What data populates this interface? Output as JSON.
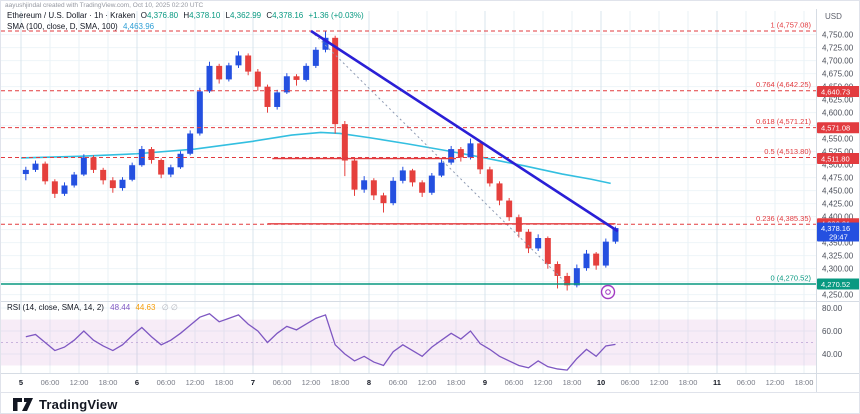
{
  "attribution": "aayushjindal created with TradingView.com, Oct 10, 2025 02:20 UTC",
  "legend": {
    "symbol": "Ethereum / U.S. Dollar · 1h · Kraken",
    "ohlc": {
      "o_label": "O",
      "o": "4,376.80",
      "h_label": "H",
      "h": "4,378.10",
      "l_label": "L",
      "l": "4,362.99",
      "c_label": "C",
      "c": "4,378.16",
      "change": "+1.36 (+0.03%)"
    },
    "sma": {
      "label": "SMA (100, close, D, SMA, 100)",
      "value": "4,463.96"
    },
    "rsi": {
      "label": "RSI (14, close, SMA, 14, 2)",
      "value": "48.44",
      "ma_value": "44.63",
      "extra": "∅ ∅"
    }
  },
  "price_axis": {
    "currency": "USD",
    "ticks": [
      "4,750.00",
      "4,725.00",
      "4,700.00",
      "4,675.00",
      "4,650.00",
      "4,625.00",
      "4,600.00",
      "4,575.00",
      "4,550.00",
      "4,525.00",
      "4,500.00",
      "4,475.00",
      "4,450.00",
      "4,425.00",
      "4,400.00",
      "4,375.00",
      "4,350.00",
      "4,325.00",
      "4,300.00",
      "4,275.00",
      "4,250.00"
    ],
    "labels": [
      {
        "text": "4,640.73",
        "price": 4640.73,
        "type": "red"
      },
      {
        "text": "4,571.08",
        "price": 4571.08,
        "type": "red"
      },
      {
        "text": "4,511.80",
        "price": 4511.8,
        "type": "red"
      },
      {
        "text": "4,386.31",
        "price": 4386.31,
        "type": "red"
      },
      {
        "text": "4,378.16",
        "price": 4378.16,
        "type": "current",
        "countdown": "29:47"
      },
      {
        "text": "4,270.52",
        "price": 4270.52,
        "type": "green"
      }
    ]
  },
  "time_axis": [
    {
      "label": "5",
      "major": true
    },
    {
      "label": "06:00"
    },
    {
      "label": "12:00"
    },
    {
      "label": "18:00"
    },
    {
      "label": "6",
      "major": true
    },
    {
      "label": "06:00"
    },
    {
      "label": "12:00"
    },
    {
      "label": "18:00"
    },
    {
      "label": "7",
      "major": true
    },
    {
      "label": "06:00"
    },
    {
      "label": "12:00"
    },
    {
      "label": "18:00"
    },
    {
      "label": "8",
      "major": true
    },
    {
      "label": "06:00"
    },
    {
      "label": "12:00"
    },
    {
      "label": "18:00"
    },
    {
      "label": "9",
      "major": true
    },
    {
      "label": "06:00"
    },
    {
      "label": "12:00"
    },
    {
      "label": "18:00"
    },
    {
      "label": "10",
      "major": true
    },
    {
      "label": "06:00"
    },
    {
      "label": "12:00"
    },
    {
      "label": "18:00"
    },
    {
      "label": "11",
      "major": true
    },
    {
      "label": "06:00"
    },
    {
      "label": "12:00"
    },
    {
      "label": "18:00"
    }
  ],
  "rsi_axis": [
    "80.00",
    "60.00",
    "40.00"
  ],
  "logo": {
    "text": "TradingView"
  },
  "colors": {
    "up": "#2450e0",
    "down": "#e5403d",
    "trend": "#2a1fd6",
    "sma": "#33bfe0",
    "fib_red": "#e23b3f",
    "teal": "#089981",
    "current_bg": "#2450e0",
    "rsi_line": "#7e57c2",
    "rsi_band": "rgba(178,72,180,0.10)"
  },
  "chart_data": {
    "type": "candlestick",
    "title": "Ethereum / U.S. Dollar",
    "interval": "1h",
    "exchange": "Kraken",
    "ylabel": "USD",
    "ylim": [
      4250,
      4772
    ],
    "x_range": "Oct 5 00:00 – Oct 11 18:00 (plotted bars end Oct 10 ~02:00)",
    "bar_hours": 2,
    "candles": [
      [
        4482,
        4496,
        4470,
        4490
      ],
      [
        4490,
        4508,
        4486,
        4502
      ],
      [
        4502,
        4506,
        4462,
        4468
      ],
      [
        4468,
        4472,
        4436,
        4444
      ],
      [
        4444,
        4466,
        4440,
        4460
      ],
      [
        4460,
        4486,
        4456,
        4481
      ],
      [
        4481,
        4520,
        4478,
        4514
      ],
      [
        4514,
        4518,
        4484,
        4490
      ],
      [
        4490,
        4494,
        4462,
        4470
      ],
      [
        4470,
        4476,
        4446,
        4455
      ],
      [
        4455,
        4476,
        4450,
        4471
      ],
      [
        4471,
        4504,
        4468,
        4499
      ],
      [
        4499,
        4536,
        4496,
        4530
      ],
      [
        4530,
        4534,
        4502,
        4509
      ],
      [
        4509,
        4512,
        4474,
        4481
      ],
      [
        4481,
        4500,
        4476,
        4495
      ],
      [
        4495,
        4526,
        4492,
        4521
      ],
      [
        4521,
        4566,
        4518,
        4560
      ],
      [
        4560,
        4648,
        4556,
        4641
      ],
      [
        4641,
        4698,
        4638,
        4690
      ],
      [
        4690,
        4694,
        4656,
        4664
      ],
      [
        4664,
        4696,
        4660,
        4691
      ],
      [
        4691,
        4718,
        4686,
        4710
      ],
      [
        4710,
        4714,
        4672,
        4679
      ],
      [
        4679,
        4684,
        4642,
        4650
      ],
      [
        4650,
        4654,
        4600,
        4611
      ],
      [
        4611,
        4644,
        4606,
        4639
      ],
      [
        4639,
        4676,
        4636,
        4670
      ],
      [
        4670,
        4674,
        4652,
        4663
      ],
      [
        4663,
        4695,
        4660,
        4690
      ],
      [
        4690,
        4726,
        4686,
        4721
      ],
      [
        4721,
        4757,
        4716,
        4744
      ],
      [
        4744,
        4748,
        4560,
        4578
      ],
      [
        4578,
        4584,
        4478,
        4508
      ],
      [
        4508,
        4514,
        4440,
        4452
      ],
      [
        4452,
        4478,
        4446,
        4470
      ],
      [
        4470,
        4474,
        4432,
        4441
      ],
      [
        4441,
        4446,
        4408,
        4426
      ],
      [
        4426,
        4476,
        4422,
        4469
      ],
      [
        4469,
        4496,
        4464,
        4489
      ],
      [
        4489,
        4492,
        4458,
        4466
      ],
      [
        4466,
        4470,
        4438,
        4446
      ],
      [
        4446,
        4484,
        4442,
        4479
      ],
      [
        4479,
        4510,
        4476,
        4504
      ],
      [
        4504,
        4536,
        4500,
        4530
      ],
      [
        4530,
        4534,
        4506,
        4514
      ],
      [
        4514,
        4550,
        4510,
        4541
      ],
      [
        4541,
        4544,
        4482,
        4491
      ],
      [
        4491,
        4496,
        4458,
        4464
      ],
      [
        4464,
        4468,
        4422,
        4431
      ],
      [
        4431,
        4436,
        4392,
        4399
      ],
      [
        4399,
        4404,
        4360,
        4371
      ],
      [
        4371,
        4376,
        4330,
        4339
      ],
      [
        4339,
        4366,
        4334,
        4359
      ],
      [
        4359,
        4362,
        4300,
        4309
      ],
      [
        4309,
        4314,
        4262,
        4286
      ],
      [
        4286,
        4292,
        4258,
        4268
      ],
      [
        4268,
        4308,
        4264,
        4301
      ],
      [
        4301,
        4336,
        4296,
        4329
      ],
      [
        4329,
        4332,
        4298,
        4306
      ],
      [
        4306,
        4358,
        4302,
        4352
      ],
      [
        4352,
        4381,
        4348,
        4378.16
      ]
    ],
    "sma100": {
      "label": "SMA (100, close, D, SMA, 100)",
      "last_value": 4463.96,
      "points_hour_price": [
        [
          0,
          4513
        ],
        [
          12,
          4516
        ],
        [
          24,
          4521
        ],
        [
          36,
          4530
        ],
        [
          48,
          4545
        ],
        [
          56,
          4557
        ],
        [
          62,
          4562
        ],
        [
          66,
          4560
        ],
        [
          72,
          4552
        ],
        [
          80,
          4540
        ],
        [
          88,
          4527
        ],
        [
          96,
          4513
        ],
        [
          104,
          4498
        ],
        [
          112,
          4482
        ],
        [
          118,
          4472
        ],
        [
          122,
          4464
        ]
      ]
    },
    "trendline": {
      "from": {
        "hour": 60,
        "price": 4757.08
      },
      "to": {
        "hour": 123.5,
        "price": 4372
      }
    },
    "fib_retracement": {
      "anchor_high": {
        "hour": 60,
        "price": 4757.08
      },
      "anchor_low": {
        "hour": 113,
        "price": 4270.52
      },
      "levels": [
        {
          "level": "1",
          "price": 4757.08,
          "label": "1 (4,757.08)"
        },
        {
          "level": "0.764",
          "price": 4642.25,
          "label": "0.764 (4,642.25)"
        },
        {
          "level": "0.618",
          "price": 4571.21,
          "label": "0.618 (4,571.21)"
        },
        {
          "level": "0.5",
          "price": 4513.8,
          "label": "0.5 (4,513.80)"
        },
        {
          "level": "0.236",
          "price": 4385.35,
          "label": "0.236 (4,385.35)"
        },
        {
          "level": "0",
          "price": 4270.52,
          "label": "0 (4,270.52)"
        }
      ]
    },
    "horizontal_lines": [
      {
        "price": 4511.8,
        "from_hour": 52,
        "to_hour": 90,
        "style": "solid",
        "color": "red"
      },
      {
        "price": 4386.31,
        "from_hour": 51,
        "to_hour": 123,
        "style": "solid",
        "color": "red"
      },
      {
        "price": 4270.52,
        "from_hour": 0,
        "to_hour": 164,
        "style": "solid",
        "color": "teal"
      }
    ],
    "rsi": {
      "band": [
        30,
        70
      ],
      "last_value": 48.44,
      "ma_last_value": 44.63,
      "values": [
        55,
        57,
        50,
        43,
        46,
        52,
        60,
        52,
        47,
        43,
        48,
        56,
        63,
        55,
        48,
        52,
        58,
        65,
        72,
        75,
        68,
        71,
        74,
        66,
        60,
        50,
        58,
        64,
        61,
        66,
        71,
        74,
        48,
        40,
        34,
        38,
        33,
        30,
        42,
        48,
        43,
        38,
        46,
        52,
        58,
        53,
        60,
        49,
        44,
        38,
        34,
        30,
        28,
        34,
        29,
        27,
        26,
        36,
        44,
        38,
        47,
        48.4
      ]
    }
  }
}
